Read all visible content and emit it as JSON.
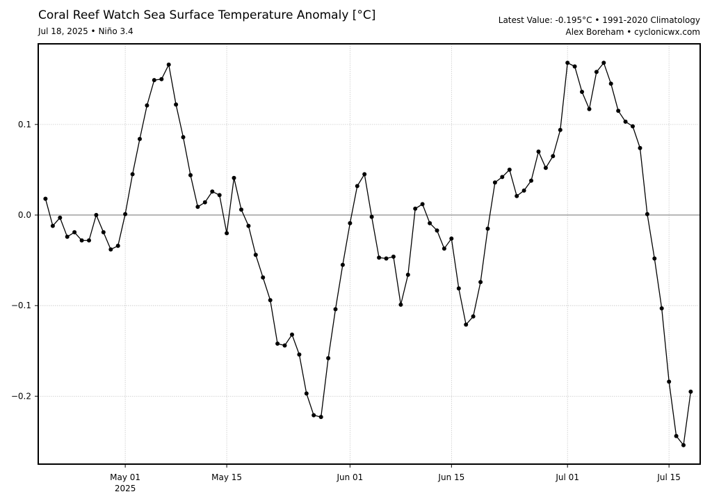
{
  "header": {
    "title": "Coral Reef Watch Sea Surface Temperature Anomaly [°C]",
    "subtitle": "Jul 18, 2025 • Niño 3.4",
    "info_line1": "Latest Value: -0.195°C • 1991-2020 Climatology",
    "info_line2": "Alex Boreham • cyclonicwx.com"
  },
  "colors": {
    "line": "#000000",
    "marker": "#000000",
    "zero_line": "#8c8c8c",
    "grid": "#c8c8c8",
    "frame": "#000000"
  },
  "chart_data": {
    "type": "line",
    "title": "Coral Reef Watch Sea Surface Temperature Anomaly [°C]",
    "subtitle": "Jul 18, 2025 • Niño 3.4",
    "annotations": [
      "Latest Value: -0.195°C • 1991-2020 Climatology",
      "Alex Boreham • cyclonicwx.com"
    ],
    "xlabel": "",
    "ylabel": "",
    "x_start": "2025-04-20",
    "x_end": "2025-07-18",
    "xlim_days_from_may01": [
      -12,
      79.3
    ],
    "ylim": [
      -0.275,
      0.189
    ],
    "grid": true,
    "legend": null,
    "x_ticks": [
      {
        "label": "May 01",
        "sublabel": "2025",
        "day": 0
      },
      {
        "label": "May 15",
        "sublabel": "",
        "day": 14
      },
      {
        "label": "Jun 01",
        "sublabel": "",
        "day": 31
      },
      {
        "label": "Jun 15",
        "sublabel": "",
        "day": 45
      },
      {
        "label": "Jul 01",
        "sublabel": "",
        "day": 61
      },
      {
        "label": "Jul 15",
        "sublabel": "",
        "day": 75
      }
    ],
    "y_ticks": [
      {
        "label": "0.1",
        "value": 0.1
      },
      {
        "label": "0.0",
        "value": 0.0
      },
      {
        "label": "−0.1",
        "value": -0.1
      },
      {
        "label": "−0.2",
        "value": -0.2
      }
    ],
    "series": [
      {
        "name": "SST Anomaly (Niño 3.4)",
        "x": [
          "Apr 20",
          "Apr 21",
          "Apr 22",
          "Apr 23",
          "Apr 24",
          "Apr 25",
          "Apr 26",
          "Apr 27",
          "Apr 28",
          "Apr 29",
          "Apr 30",
          "May 01",
          "May 02",
          "May 03",
          "May 04",
          "May 05",
          "May 06",
          "May 07",
          "May 08",
          "May 09",
          "May 10",
          "May 11",
          "May 12",
          "May 13",
          "May 14",
          "May 15",
          "May 16",
          "May 17",
          "May 18",
          "May 19",
          "May 20",
          "May 21",
          "May 22",
          "May 23",
          "May 24",
          "May 25",
          "May 26",
          "May 27",
          "May 28",
          "May 29",
          "May 30",
          "May 31",
          "Jun 01",
          "Jun 02",
          "Jun 03",
          "Jun 04",
          "Jun 05",
          "Jun 06",
          "Jun 07",
          "Jun 08",
          "Jun 09",
          "Jun 10",
          "Jun 11",
          "Jun 12",
          "Jun 13",
          "Jun 14",
          "Jun 15",
          "Jun 16",
          "Jun 17",
          "Jun 18",
          "Jun 19",
          "Jun 20",
          "Jun 21",
          "Jun 22",
          "Jun 23",
          "Jun 24",
          "Jun 25",
          "Jun 26",
          "Jun 27",
          "Jun 28",
          "Jun 29",
          "Jun 30",
          "Jul 01",
          "Jul 02",
          "Jul 03",
          "Jul 04",
          "Jul 05",
          "Jul 06",
          "Jul 07",
          "Jul 08",
          "Jul 09",
          "Jul 10",
          "Jul 11",
          "Jul 12",
          "Jul 13",
          "Jul 14",
          "Jul 15",
          "Jul 16",
          "Jul 17",
          "Jul 18"
        ],
        "values": [
          0.018,
          -0.012,
          -0.003,
          -0.024,
          -0.019,
          -0.028,
          -0.028,
          0.0,
          -0.019,
          -0.038,
          -0.034,
          0.001,
          0.045,
          0.084,
          0.121,
          0.149,
          0.15,
          0.166,
          0.122,
          0.086,
          0.044,
          0.009,
          0.014,
          0.026,
          0.022,
          -0.02,
          0.041,
          0.006,
          -0.012,
          -0.044,
          -0.069,
          -0.094,
          -0.142,
          -0.144,
          -0.132,
          -0.154,
          -0.197,
          -0.221,
          -0.223,
          -0.158,
          -0.104,
          -0.055,
          -0.009,
          0.032,
          0.045,
          -0.002,
          -0.047,
          -0.048,
          -0.046,
          -0.099,
          -0.066,
          0.007,
          0.012,
          -0.009,
          -0.017,
          -0.037,
          -0.026,
          -0.081,
          -0.121,
          -0.112,
          -0.074,
          -0.015,
          0.036,
          0.042,
          0.05,
          0.021,
          0.027,
          0.038,
          0.07,
          0.052,
          0.065,
          0.094,
          0.168,
          0.164,
          0.136,
          0.117,
          0.158,
          0.168,
          0.145,
          0.115,
          0.103,
          0.098,
          0.074,
          0.001,
          -0.048,
          -0.103,
          -0.184,
          -0.244,
          -0.254,
          -0.195
        ]
      }
    ]
  }
}
